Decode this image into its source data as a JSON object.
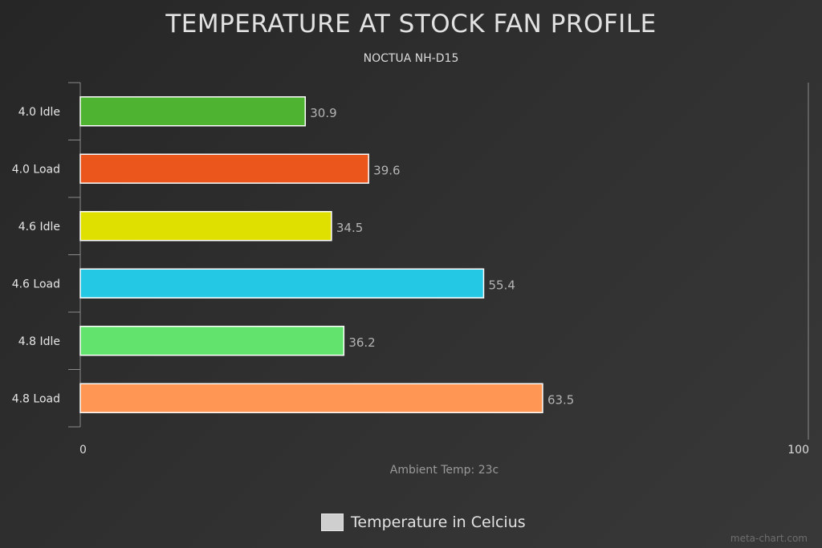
{
  "chart_data": {
    "type": "bar",
    "orientation": "horizontal",
    "title": "TEMPERATURE AT STOCK FAN PROFILE",
    "subtitle": "NOCTUA NH-D15",
    "categories": [
      "4.0 Idle",
      "4.0 Load",
      "4.6 Idle",
      "4.6 Load",
      "4.8 Idle",
      "4.8 Load"
    ],
    "values": [
      30.9,
      39.6,
      34.5,
      55.4,
      36.2,
      63.5
    ],
    "data_labels": [
      "30.9",
      "39.6",
      "34.5",
      "55.4",
      "36.2",
      "63.5"
    ],
    "colors": [
      "#4fb332",
      "#eb561c",
      "#dfdf00",
      "#24c8e5",
      "#62e36e",
      "#ff9653"
    ],
    "xlabel": "Ambient Temp: 23c",
    "xlim": [
      0,
      100
    ],
    "x_ticks": [
      "0",
      "100"
    ],
    "grid": false,
    "legend": {
      "position": "bottom-center",
      "entries": [
        "Temperature in Celcius"
      ]
    }
  },
  "legend_swatch_color": "#cfcfcf",
  "watermark": "meta-chart.com"
}
